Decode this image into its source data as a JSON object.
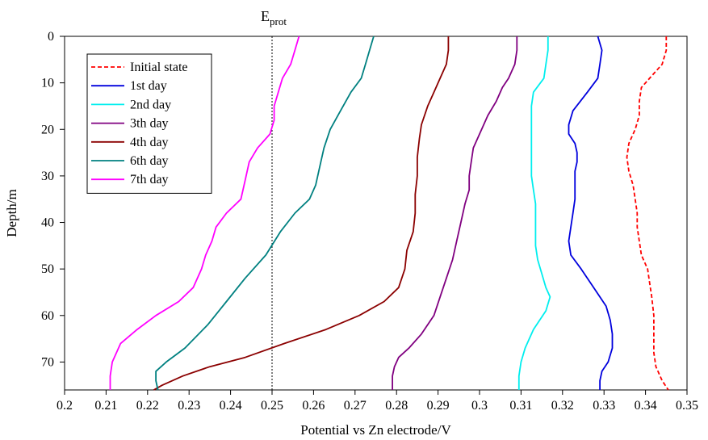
{
  "chart_data": {
    "type": "line",
    "xlabel": "Potential vs Zn electrode/V",
    "ylabel": "Depth/m",
    "xlim": [
      0.2,
      0.35
    ],
    "ylim": [
      0,
      76
    ],
    "y_inverted": true,
    "x_ticks": [
      "0.2",
      "0.21",
      "0.22",
      "0.23",
      "0.24",
      "0.25",
      "0.26",
      "0.27",
      "0.28",
      "0.29",
      "0.3",
      "0.31",
      "0.32",
      "0.33",
      "0.34",
      "0.35"
    ],
    "y_ticks": [
      "0",
      "10",
      "20",
      "30",
      "40",
      "50",
      "60",
      "70"
    ],
    "grid": false,
    "legend_position": "top-left",
    "reference_line": {
      "label": "E",
      "subscript": "prot",
      "x": 0.25,
      "style": "dotted"
    },
    "series": [
      {
        "name": "Initial state",
        "color": "#ff0000",
        "dash": "dashed",
        "points": [
          [
            0.345,
            0
          ],
          [
            0.345,
            3
          ],
          [
            0.344,
            6
          ],
          [
            0.341,
            9
          ],
          [
            0.339,
            11
          ],
          [
            0.3385,
            14
          ],
          [
            0.3385,
            17
          ],
          [
            0.3375,
            20
          ],
          [
            0.336,
            23
          ],
          [
            0.3355,
            26
          ],
          [
            0.336,
            29
          ],
          [
            0.337,
            32
          ],
          [
            0.3375,
            35
          ],
          [
            0.338,
            38
          ],
          [
            0.338,
            41
          ],
          [
            0.3385,
            44
          ],
          [
            0.339,
            47
          ],
          [
            0.3405,
            50
          ],
          [
            0.341,
            53
          ],
          [
            0.3415,
            56
          ],
          [
            0.342,
            60
          ],
          [
            0.342,
            64
          ],
          [
            0.342,
            68
          ],
          [
            0.3425,
            71
          ],
          [
            0.344,
            74
          ],
          [
            0.3455,
            76
          ]
        ]
      },
      {
        "name": "1st day",
        "color": "#0000dd",
        "dash": "solid",
        "points": [
          [
            0.3285,
            0
          ],
          [
            0.3295,
            3
          ],
          [
            0.329,
            6
          ],
          [
            0.3285,
            9
          ],
          [
            0.326,
            12
          ],
          [
            0.3225,
            16
          ],
          [
            0.3215,
            19
          ],
          [
            0.3215,
            21
          ],
          [
            0.323,
            23
          ],
          [
            0.3235,
            25
          ],
          [
            0.3235,
            27
          ],
          [
            0.323,
            29
          ],
          [
            0.323,
            32
          ],
          [
            0.323,
            35
          ],
          [
            0.3225,
            38
          ],
          [
            0.322,
            41
          ],
          [
            0.3215,
            44
          ],
          [
            0.322,
            47
          ],
          [
            0.3245,
            50
          ],
          [
            0.3275,
            54
          ],
          [
            0.3305,
            58
          ],
          [
            0.3315,
            61
          ],
          [
            0.332,
            64
          ],
          [
            0.332,
            67
          ],
          [
            0.331,
            70
          ],
          [
            0.3295,
            72
          ],
          [
            0.329,
            74
          ],
          [
            0.329,
            76
          ]
        ]
      },
      {
        "name": "2nd day",
        "color": "#00eeee",
        "dash": "solid",
        "points": [
          [
            0.3165,
            0
          ],
          [
            0.3165,
            3
          ],
          [
            0.316,
            6
          ],
          [
            0.3155,
            9
          ],
          [
            0.313,
            12
          ],
          [
            0.3125,
            15
          ],
          [
            0.3125,
            18
          ],
          [
            0.3125,
            21
          ],
          [
            0.3125,
            24
          ],
          [
            0.3125,
            27
          ],
          [
            0.3125,
            30
          ],
          [
            0.313,
            33
          ],
          [
            0.3135,
            36
          ],
          [
            0.3135,
            39
          ],
          [
            0.3135,
            42
          ],
          [
            0.3135,
            45
          ],
          [
            0.314,
            48
          ],
          [
            0.315,
            51
          ],
          [
            0.316,
            54
          ],
          [
            0.317,
            56
          ],
          [
            0.316,
            59
          ],
          [
            0.313,
            63
          ],
          [
            0.311,
            67
          ],
          [
            0.31,
            70
          ],
          [
            0.3095,
            73
          ],
          [
            0.3095,
            76
          ]
        ]
      },
      {
        "name": "3th day",
        "color": "#800080",
        "dash": "solid",
        "points": [
          [
            0.309,
            0
          ],
          [
            0.309,
            3
          ],
          [
            0.3085,
            6
          ],
          [
            0.307,
            9
          ],
          [
            0.3055,
            11
          ],
          [
            0.304,
            14
          ],
          [
            0.302,
            17
          ],
          [
            0.3005,
            20
          ],
          [
            0.2985,
            24
          ],
          [
            0.298,
            27
          ],
          [
            0.2975,
            30
          ],
          [
            0.2975,
            33
          ],
          [
            0.2965,
            36
          ],
          [
            0.2955,
            40
          ],
          [
            0.2945,
            44
          ],
          [
            0.2935,
            48
          ],
          [
            0.292,
            52
          ],
          [
            0.2905,
            56
          ],
          [
            0.289,
            60
          ],
          [
            0.286,
            64
          ],
          [
            0.283,
            67
          ],
          [
            0.2805,
            69
          ],
          [
            0.2795,
            71
          ],
          [
            0.279,
            73
          ],
          [
            0.279,
            76
          ]
        ]
      },
      {
        "name": "4th day",
        "color": "#8b0000",
        "dash": "solid",
        "points": [
          [
            0.2925,
            0
          ],
          [
            0.2925,
            3
          ],
          [
            0.292,
            6
          ],
          [
            0.2905,
            9
          ],
          [
            0.289,
            12
          ],
          [
            0.2875,
            15
          ],
          [
            0.286,
            19
          ],
          [
            0.2855,
            22
          ],
          [
            0.285,
            26
          ],
          [
            0.285,
            30
          ],
          [
            0.2845,
            34
          ],
          [
            0.2845,
            38
          ],
          [
            0.284,
            42
          ],
          [
            0.2825,
            46
          ],
          [
            0.282,
            50
          ],
          [
            0.2805,
            54
          ],
          [
            0.277,
            57
          ],
          [
            0.271,
            60
          ],
          [
            0.263,
            63
          ],
          [
            0.253,
            66
          ],
          [
            0.2435,
            69
          ],
          [
            0.235,
            71
          ],
          [
            0.2285,
            73
          ],
          [
            0.2235,
            75
          ],
          [
            0.2215,
            76
          ]
        ]
      },
      {
        "name": "6th day",
        "color": "#008080",
        "dash": "solid",
        "points": [
          [
            0.2745,
            0
          ],
          [
            0.2735,
            3
          ],
          [
            0.2725,
            6
          ],
          [
            0.2715,
            9
          ],
          [
            0.269,
            12
          ],
          [
            0.2665,
            16
          ],
          [
            0.264,
            20
          ],
          [
            0.2625,
            24
          ],
          [
            0.2615,
            28
          ],
          [
            0.2605,
            32
          ],
          [
            0.259,
            35
          ],
          [
            0.2555,
            38
          ],
          [
            0.252,
            42
          ],
          [
            0.2485,
            47
          ],
          [
            0.2435,
            52
          ],
          [
            0.239,
            57
          ],
          [
            0.2345,
            62
          ],
          [
            0.229,
            67
          ],
          [
            0.2245,
            70
          ],
          [
            0.222,
            72
          ],
          [
            0.222,
            74
          ],
          [
            0.2225,
            76
          ]
        ]
      },
      {
        "name": "7th day",
        "color": "#ff00ff",
        "dash": "solid",
        "points": [
          [
            0.2565,
            0
          ],
          [
            0.2555,
            3
          ],
          [
            0.2545,
            6
          ],
          [
            0.2525,
            9
          ],
          [
            0.2515,
            12
          ],
          [
            0.2505,
            15
          ],
          [
            0.2505,
            18
          ],
          [
            0.2495,
            21
          ],
          [
            0.2465,
            24
          ],
          [
            0.2445,
            27
          ],
          [
            0.2435,
            31
          ],
          [
            0.2425,
            35
          ],
          [
            0.239,
            38
          ],
          [
            0.2365,
            41
          ],
          [
            0.2355,
            44
          ],
          [
            0.234,
            47
          ],
          [
            0.233,
            50
          ],
          [
            0.231,
            54
          ],
          [
            0.2275,
            57
          ],
          [
            0.222,
            60
          ],
          [
            0.2175,
            63
          ],
          [
            0.2135,
            66
          ],
          [
            0.2115,
            70
          ],
          [
            0.211,
            73
          ],
          [
            0.211,
            76
          ]
        ]
      }
    ]
  }
}
